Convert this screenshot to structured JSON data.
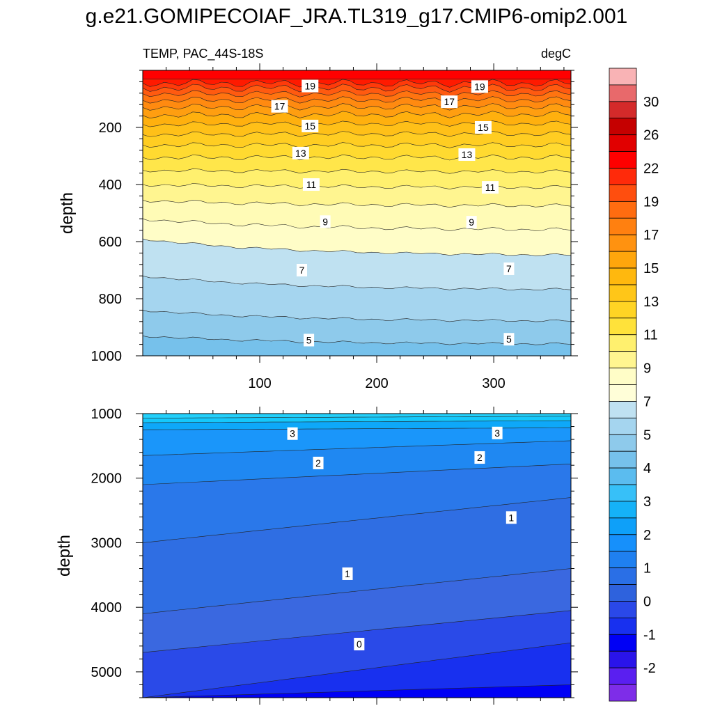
{
  "title": "g.e21.GOMIPECOIAF_JRA.TL319_g17.CMIP6-omip2.001",
  "top_left_label": "TEMP, PAC_44S-18S",
  "top_right_label": "degC",
  "chart_data": [
    {
      "type": "contour",
      "panel": "upper",
      "ylabel": "depth",
      "xlabel": "",
      "xlim": [
        0,
        366
      ],
      "ylim": [
        0,
        1000
      ],
      "y_inverted": true,
      "x_ticks": [
        100,
        200,
        300
      ],
      "y_ticks": [
        200,
        400,
        600,
        800,
        1000
      ],
      "contour_labels": [
        {
          "text": "19",
          "x": 143,
          "y": 55
        },
        {
          "text": "19",
          "x": 288,
          "y": 57
        },
        {
          "text": "17",
          "x": 117,
          "y": 126
        },
        {
          "text": "17",
          "x": 262,
          "y": 110
        },
        {
          "text": "15",
          "x": 143,
          "y": 195
        },
        {
          "text": "15",
          "x": 291,
          "y": 200
        },
        {
          "text": "13",
          "x": 135,
          "y": 290
        },
        {
          "text": "13",
          "x": 277,
          "y": 295
        },
        {
          "text": "11",
          "x": 144,
          "y": 400
        },
        {
          "text": "11",
          "x": 297,
          "y": 410
        },
        {
          "text": "9",
          "x": 156,
          "y": 530
        },
        {
          "text": "9",
          "x": 281,
          "y": 532
        },
        {
          "text": "7",
          "x": 136,
          "y": 700
        },
        {
          "text": "7",
          "x": 313,
          "y": 695
        },
        {
          "text": "5",
          "x": 142,
          "y": 945
        },
        {
          "text": "5",
          "x": 313,
          "y": 942
        }
      ]
    },
    {
      "type": "contour",
      "panel": "lower",
      "ylabel": "depth",
      "xlabel": "",
      "xlim": [
        0,
        366
      ],
      "ylim": [
        1000,
        5400
      ],
      "y_inverted": true,
      "x_ticks": [
        100,
        200,
        300
      ],
      "y_ticks": [
        1000,
        2000,
        3000,
        4000,
        5000
      ],
      "contour_labels": [
        {
          "text": "3",
          "x": 128,
          "y": 1310
        },
        {
          "text": "3",
          "x": 303,
          "y": 1300
        },
        {
          "text": "2",
          "x": 150,
          "y": 1765
        },
        {
          "text": "2",
          "x": 288,
          "y": 1680
        },
        {
          "text": "1",
          "x": 315,
          "y": 2610
        },
        {
          "text": "1",
          "x": 175,
          "y": 3480
        },
        {
          "text": "0",
          "x": 185,
          "y": 4570
        }
      ]
    }
  ],
  "colorbar": {
    "labels": [
      "30",
      "26",
      "22",
      "19",
      "17",
      "15",
      "13",
      "11",
      "9",
      "7",
      "5",
      "4",
      "3",
      "2",
      "1",
      "0",
      "-1",
      "-2"
    ],
    "colors_top_to_bottom": [
      "#f9b3b5",
      "#e8696b",
      "#d42a2a",
      "#c50000",
      "#e10000",
      "#ff0000",
      "#ff2a0a",
      "#ff4e0e",
      "#ff6c10",
      "#ff8010",
      "#ff9210",
      "#ffa60c",
      "#ffb80e",
      "#ffc618",
      "#ffd424",
      "#ffe23a",
      "#fff06e",
      "#fff590",
      "#fffdc7",
      "#fffed8",
      "#bfe1f1",
      "#a5d5ef",
      "#8ecaeb",
      "#76c1eb",
      "#5bbcef",
      "#37c0f8",
      "#15b2f8",
      "#0ea0f9",
      "#1690fb",
      "#1f80f0",
      "#2a6fe6",
      "#2e62dd",
      "#2a48e8",
      "#1830ef",
      "#0000f5",
      "#2a14ea",
      "#5a1ff0",
      "#7e2de8"
    ]
  }
}
